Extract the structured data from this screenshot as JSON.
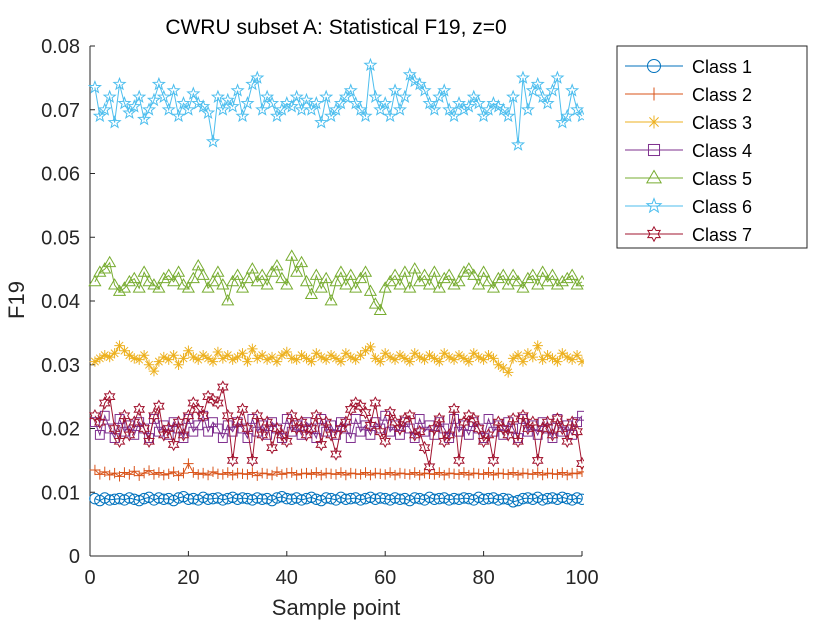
{
  "chart_data": {
    "type": "line",
    "title": "CWRU subset A: Statistical F19, z=0",
    "xlabel": "Sample point",
    "ylabel": "F19",
    "xlim": [
      0,
      100
    ],
    "ylim": [
      0,
      0.08
    ],
    "xticks": [
      0,
      20,
      40,
      60,
      80,
      100
    ],
    "xtick_labels": [
      "0",
      "20",
      "40",
      "60",
      "80",
      "100"
    ],
    "yticks": [
      0,
      0.01,
      0.02,
      0.03,
      0.04,
      0.05,
      0.06,
      0.07,
      0.08
    ],
    "ytick_labels": [
      "0",
      "0.01",
      "0.02",
      "0.03",
      "0.04",
      "0.05",
      "0.06",
      "0.07",
      "0.08"
    ],
    "grid": false,
    "legend_position": "outside-top-right",
    "x": [
      1,
      2,
      3,
      4,
      5,
      6,
      7,
      8,
      9,
      10,
      11,
      12,
      13,
      14,
      15,
      16,
      17,
      18,
      19,
      20,
      21,
      22,
      23,
      24,
      25,
      26,
      27,
      28,
      29,
      30,
      31,
      32,
      33,
      34,
      35,
      36,
      37,
      38,
      39,
      40,
      41,
      42,
      43,
      44,
      45,
      46,
      47,
      48,
      49,
      50,
      51,
      52,
      53,
      54,
      55,
      56,
      57,
      58,
      59,
      60,
      61,
      62,
      63,
      64,
      65,
      66,
      67,
      68,
      69,
      70,
      71,
      72,
      73,
      74,
      75,
      76,
      77,
      78,
      79,
      80,
      81,
      82,
      83,
      84,
      85,
      86,
      87,
      88,
      89,
      90,
      91,
      92,
      93,
      94,
      95,
      96,
      97,
      98,
      99,
      100
    ],
    "series": [
      {
        "name": "Class 1",
        "color": "#0072BD",
        "marker": "circle",
        "values": [
          0.009,
          0.0087,
          0.0091,
          0.0088,
          0.0089,
          0.009,
          0.0088,
          0.0091,
          0.0089,
          0.0087,
          0.009,
          0.0092,
          0.0088,
          0.0091,
          0.0089,
          0.009,
          0.0087,
          0.0091,
          0.0093,
          0.0089,
          0.009,
          0.0088,
          0.0092,
          0.0089,
          0.009,
          0.0091,
          0.0088,
          0.009,
          0.0092,
          0.0089,
          0.0091,
          0.009,
          0.0088,
          0.0091,
          0.0089,
          0.009,
          0.0087,
          0.0091,
          0.0093,
          0.009,
          0.0089,
          0.0091,
          0.0088,
          0.009,
          0.0092,
          0.0089,
          0.0087,
          0.0091,
          0.009,
          0.0088,
          0.0092,
          0.0089,
          0.009,
          0.0091,
          0.0088,
          0.009,
          0.0092,
          0.0089,
          0.0091,
          0.009,
          0.0088,
          0.0091,
          0.0089,
          0.009,
          0.0087,
          0.0091,
          0.009,
          0.0088,
          0.0092,
          0.0089,
          0.009,
          0.0091,
          0.0088,
          0.009,
          0.0089,
          0.0091,
          0.009,
          0.0088,
          0.0092,
          0.0089,
          0.009,
          0.0091,
          0.0088,
          0.009,
          0.0089,
          0.0085,
          0.0087,
          0.009,
          0.0091,
          0.0089,
          0.0092,
          0.0088,
          0.009,
          0.0091,
          0.0089,
          0.0092,
          0.009,
          0.0088,
          0.0091,
          0.0089
        ]
      },
      {
        "name": "Class 2",
        "color": "#D95319",
        "marker": "plus",
        "values": [
          0.0135,
          0.0128,
          0.0132,
          0.0127,
          0.013,
          0.0125,
          0.0131,
          0.0128,
          0.0133,
          0.0126,
          0.013,
          0.0134,
          0.0128,
          0.0131,
          0.0127,
          0.0129,
          0.0132,
          0.0126,
          0.013,
          0.0145,
          0.0131,
          0.0128,
          0.013,
          0.0127,
          0.0132,
          0.0129,
          0.0128,
          0.0131,
          0.0127,
          0.013,
          0.0129,
          0.0128,
          0.0131,
          0.0126,
          0.013,
          0.0129,
          0.0127,
          0.0132,
          0.0128,
          0.013,
          0.0131,
          0.0127,
          0.0129,
          0.013,
          0.0128,
          0.0131,
          0.0127,
          0.013,
          0.0129,
          0.0128,
          0.0131,
          0.0127,
          0.013,
          0.0129,
          0.0128,
          0.0131,
          0.0127,
          0.013,
          0.0129,
          0.0128,
          0.0131,
          0.0127,
          0.013,
          0.0129,
          0.0128,
          0.0131,
          0.0127,
          0.013,
          0.0129,
          0.0128,
          0.0131,
          0.0127,
          0.013,
          0.0129,
          0.0128,
          0.0131,
          0.0127,
          0.013,
          0.0129,
          0.0128,
          0.0131,
          0.0127,
          0.013,
          0.0129,
          0.0128,
          0.0131,
          0.0127,
          0.013,
          0.0129,
          0.0128,
          0.0131,
          0.0127,
          0.013,
          0.0129,
          0.0128,
          0.0131,
          0.0127,
          0.013,
          0.0129,
          0.0132
        ]
      },
      {
        "name": "Class 3",
        "color": "#EDB120",
        "marker": "asterisk",
        "values": [
          0.0305,
          0.031,
          0.0315,
          0.0312,
          0.0318,
          0.033,
          0.0322,
          0.0315,
          0.031,
          0.0308,
          0.0315,
          0.03,
          0.029,
          0.0305,
          0.0312,
          0.0308,
          0.0315,
          0.03,
          0.031,
          0.0322,
          0.0312,
          0.0308,
          0.0315,
          0.031,
          0.0305,
          0.032,
          0.031,
          0.0315,
          0.0308,
          0.0312,
          0.0318,
          0.0305,
          0.0325,
          0.031,
          0.0315,
          0.0308,
          0.0312,
          0.0305,
          0.0315,
          0.032,
          0.031,
          0.0308,
          0.0315,
          0.031,
          0.0305,
          0.0318,
          0.0312,
          0.0308,
          0.0315,
          0.031,
          0.0305,
          0.0318,
          0.0312,
          0.0308,
          0.0315,
          0.0322,
          0.0328,
          0.031,
          0.0305,
          0.0318,
          0.0312,
          0.0308,
          0.0315,
          0.031,
          0.0305,
          0.0318,
          0.0312,
          0.0308,
          0.0315,
          0.031,
          0.0305,
          0.0318,
          0.0312,
          0.0308,
          0.0315,
          0.031,
          0.0305,
          0.0318,
          0.0312,
          0.0308,
          0.0315,
          0.031,
          0.03,
          0.0295,
          0.0288,
          0.031,
          0.0315,
          0.0305,
          0.0318,
          0.0312,
          0.033,
          0.0308,
          0.0315,
          0.031,
          0.0305,
          0.0318,
          0.0312,
          0.0308,
          0.0315,
          0.0305
        ]
      },
      {
        "name": "Class 4",
        "color": "#7E2F8E",
        "marker": "square",
        "values": [
          0.021,
          0.019,
          0.022,
          0.02,
          0.0185,
          0.0215,
          0.0195,
          0.0205,
          0.019,
          0.021,
          0.02,
          0.0185,
          0.0215,
          0.0195,
          0.0205,
          0.019,
          0.021,
          0.02,
          0.0185,
          0.0215,
          0.0195,
          0.0205,
          0.022,
          0.0195,
          0.021,
          0.02,
          0.0185,
          0.0205,
          0.0195,
          0.021,
          0.02,
          0.0185,
          0.0215,
          0.0195,
          0.0205,
          0.019,
          0.021,
          0.02,
          0.0185,
          0.0215,
          0.0195,
          0.0205,
          0.019,
          0.021,
          0.02,
          0.0185,
          0.0215,
          0.0195,
          0.0205,
          0.019,
          0.021,
          0.02,
          0.0185,
          0.0215,
          0.0195,
          0.0205,
          0.019,
          0.021,
          0.02,
          0.022,
          0.0195,
          0.0205,
          0.019,
          0.021,
          0.02,
          0.0185,
          0.0215,
          0.0195,
          0.0205,
          0.019,
          0.021,
          0.02,
          0.0185,
          0.0215,
          0.0195,
          0.0205,
          0.019,
          0.021,
          0.02,
          0.0185,
          0.0215,
          0.0195,
          0.0205,
          0.019,
          0.021,
          0.02,
          0.0185,
          0.0215,
          0.0195,
          0.0205,
          0.019,
          0.021,
          0.02,
          0.0185,
          0.0215,
          0.0195,
          0.0205,
          0.019,
          0.021,
          0.022
        ]
      },
      {
        "name": "Class 5",
        "color": "#77AC30",
        "marker": "triangle",
        "values": [
          0.043,
          0.0445,
          0.045,
          0.046,
          0.0425,
          0.0415,
          0.042,
          0.043,
          0.0435,
          0.042,
          0.0445,
          0.043,
          0.0425,
          0.042,
          0.0435,
          0.044,
          0.043,
          0.0445,
          0.0425,
          0.042,
          0.0435,
          0.0455,
          0.044,
          0.042,
          0.043,
          0.0445,
          0.0425,
          0.04,
          0.043,
          0.044,
          0.042,
          0.0435,
          0.045,
          0.043,
          0.044,
          0.0425,
          0.0445,
          0.0455,
          0.0435,
          0.0425,
          0.047,
          0.0445,
          0.046,
          0.043,
          0.041,
          0.044,
          0.042,
          0.0435,
          0.04,
          0.043,
          0.0445,
          0.0425,
          0.044,
          0.042,
          0.0435,
          0.0445,
          0.0415,
          0.0395,
          0.0385,
          0.042,
          0.043,
          0.044,
          0.0425,
          0.0445,
          0.042,
          0.045,
          0.043,
          0.044,
          0.0425,
          0.0445,
          0.042,
          0.0435,
          0.044,
          0.0425,
          0.043,
          0.0445,
          0.045,
          0.044,
          0.0425,
          0.0445,
          0.043,
          0.042,
          0.0435,
          0.044,
          0.0425,
          0.044,
          0.043,
          0.042,
          0.0435,
          0.044,
          0.0425,
          0.0445,
          0.043,
          0.044,
          0.0425,
          0.043,
          0.0435,
          0.044,
          0.0425,
          0.043
        ]
      },
      {
        "name": "Class 6",
        "color": "#4DBEEE",
        "marker": "pentagram",
        "values": [
          0.0735,
          0.069,
          0.07,
          0.072,
          0.068,
          0.074,
          0.071,
          0.0695,
          0.0705,
          0.072,
          0.0685,
          0.07,
          0.0715,
          0.074,
          0.072,
          0.07,
          0.073,
          0.069,
          0.071,
          0.07,
          0.0725,
          0.071,
          0.0705,
          0.0695,
          0.065,
          0.072,
          0.07,
          0.0715,
          0.0705,
          0.073,
          0.069,
          0.071,
          0.074,
          0.075,
          0.07,
          0.072,
          0.071,
          0.069,
          0.07,
          0.071,
          0.0705,
          0.072,
          0.07,
          0.0715,
          0.07,
          0.071,
          0.068,
          0.072,
          0.069,
          0.07,
          0.071,
          0.072,
          0.073,
          0.071,
          0.07,
          0.069,
          0.077,
          0.072,
          0.07,
          0.071,
          0.069,
          0.073,
          0.07,
          0.072,
          0.0755,
          0.0745,
          0.074,
          0.073,
          0.071,
          0.07,
          0.072,
          0.073,
          0.07,
          0.069,
          0.071,
          0.07,
          0.0705,
          0.072,
          0.071,
          0.069,
          0.07,
          0.071,
          0.0705,
          0.07,
          0.069,
          0.072,
          0.0645,
          0.075,
          0.07,
          0.073,
          0.074,
          0.072,
          0.071,
          0.073,
          0.075,
          0.068,
          0.069,
          0.073,
          0.07,
          0.069
        ]
      },
      {
        "name": "Class 7",
        "color": "#A2142F",
        "marker": "hexagram",
        "values": [
          0.022,
          0.021,
          0.024,
          0.025,
          0.02,
          0.018,
          0.022,
          0.019,
          0.021,
          0.023,
          0.02,
          0.018,
          0.022,
          0.0235,
          0.019,
          0.02,
          0.0175,
          0.021,
          0.019,
          0.022,
          0.024,
          0.023,
          0.022,
          0.025,
          0.0245,
          0.024,
          0.0265,
          0.022,
          0.015,
          0.021,
          0.023,
          0.02,
          0.015,
          0.022,
          0.019,
          0.021,
          0.017,
          0.02,
          0.019,
          0.018,
          0.022,
          0.02,
          0.021,
          0.019,
          0.02,
          0.022,
          0.0175,
          0.021,
          0.019,
          0.016,
          0.02,
          0.021,
          0.023,
          0.024,
          0.0235,
          0.0225,
          0.0205,
          0.024,
          0.0195,
          0.018,
          0.0225,
          0.021,
          0.02,
          0.0215,
          0.022,
          0.019,
          0.0195,
          0.017,
          0.014,
          0.02,
          0.0215,
          0.018,
          0.019,
          0.023,
          0.015,
          0.021,
          0.022,
          0.0215,
          0.02,
          0.018,
          0.019,
          0.015,
          0.021,
          0.02,
          0.019,
          0.0215,
          0.018,
          0.022,
          0.02,
          0.021,
          0.015,
          0.02,
          0.021,
          0.019,
          0.0215,
          0.02,
          0.018,
          0.021,
          0.0195,
          0.0145
        ]
      }
    ]
  }
}
